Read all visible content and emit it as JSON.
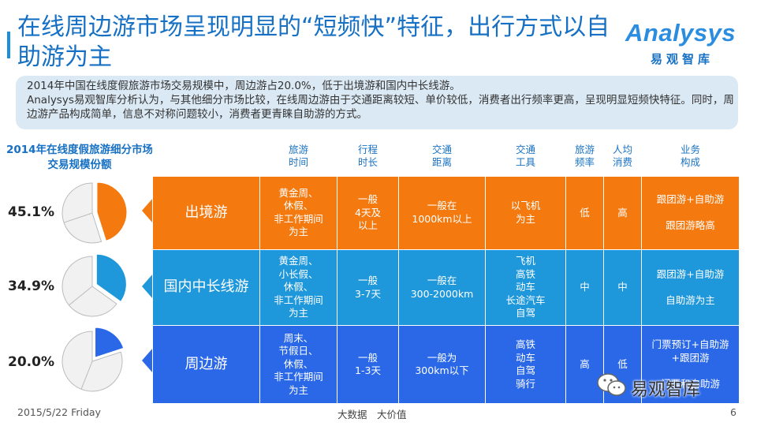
{
  "title": "在线周边游市场呈现明显的“短频快”特征，出行方式以自助游为主",
  "logo": {
    "word": "Analysys",
    "cn": "易观智库"
  },
  "summary": [
    "2014年中国在线度假旅游市场交易规模中，周边游占20.0%，低于出境游和国内中长线游。",
    "Analysys易观智库分析认为，与其他细分市场比较，在线周边游由于交通距离较短、单价较低，消费者出行频率更高，呈现明显短频快特征。同时，周边游产品构成简单，信息不对称问题较小，消费者更青睐自助游的方式。"
  ],
  "side_title": "2014年在线度假旅游细分市场交易规模份额",
  "colors": {
    "outbound": "#f47a10",
    "domestic_long": "#1f97db",
    "nearby": "#2b68e8",
    "title": "#1670c4"
  },
  "shares": [
    {
      "label": "45.1%",
      "value": 45.1,
      "color": "#f47a10"
    },
    {
      "label": "34.9%",
      "value": 34.9,
      "color": "#1f97db"
    },
    {
      "label": "20.0%",
      "value": 20.0,
      "color": "#2b68e8"
    }
  ],
  "table": {
    "headers": [
      "旅游\n时间",
      "行程\n时长",
      "交通\n距离",
      "交通\n工具",
      "旅游\n频率",
      "人均\n消费",
      "业务\n构成"
    ],
    "rows": [
      {
        "name": "出境游",
        "cells": [
          "黄金周、\n休假、\n非工作期间\n为主",
          "一般\n4天及\n以上",
          "一般在\n1000km以上",
          "以飞机\n为主",
          "低",
          "高",
          "跟团游+自助游\n\n跟团游略高"
        ]
      },
      {
        "name": "国内中长线游",
        "cells": [
          "黄金周、\n小长假、\n休假、\n非工作期间\n为主",
          "一般\n3-7天",
          "一般在\n300-2000km",
          "飞机\n高铁\n动车\n长途汽车\n自驾",
          "中",
          "中",
          "跟团游+自助游\n\n自助游为主"
        ]
      },
      {
        "name": "周边游",
        "cells": [
          "周末、\n节假日、\n休假、\n非工作期间\n为主",
          "一般\n1-3天",
          "一般为\n300km以下",
          "高铁\n动车\n自驾\n骑行",
          "高",
          "低",
          "门票预订+自助游\n+跟团游\n\n门票和自助游"
        ]
      }
    ]
  },
  "wechat_label": "易观智库",
  "footer": {
    "date": "2015/5/22 Friday",
    "slogan": "大数据　大价值",
    "page": "6"
  }
}
